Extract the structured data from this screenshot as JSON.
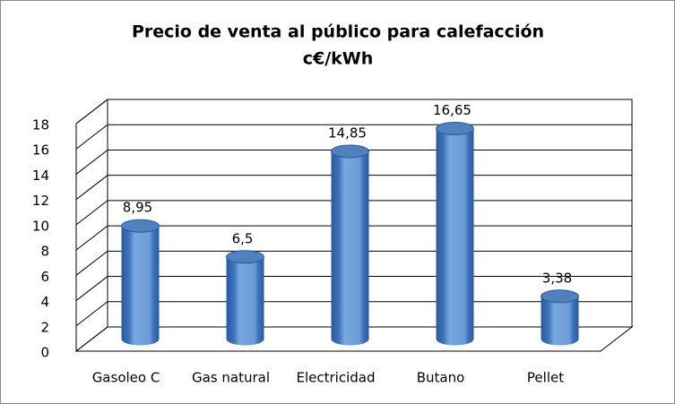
{
  "chart_data": {
    "type": "bar",
    "title": "Precio de venta al público para calefacción",
    "subtitle": "c€/kWh",
    "categories": [
      "Gasoleo C",
      "Gas natural",
      "Electricidad",
      "Butano",
      "Pellet"
    ],
    "values": [
      8.95,
      6.5,
      14.85,
      16.65,
      3.38
    ],
    "value_labels": [
      "8,95",
      "6,5",
      "14,85",
      "16,65",
      "3,38"
    ],
    "color": "#4f81bd",
    "ylim": [
      0,
      18
    ],
    "yticks": [
      0,
      2,
      4,
      6,
      8,
      10,
      12,
      14,
      16,
      18
    ],
    "grid": true
  }
}
